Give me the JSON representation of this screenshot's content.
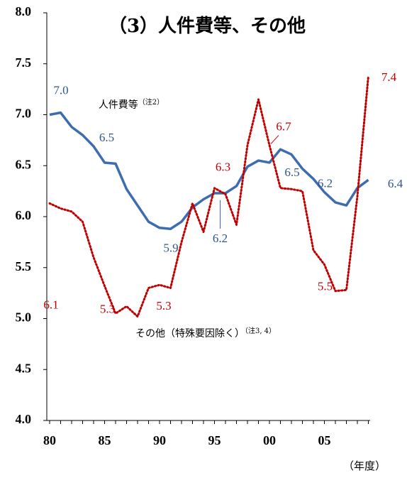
{
  "chart_data": {
    "type": "line",
    "title": "（3）人件費等、その他",
    "x_unit": "（年度）",
    "categories": [
      "80",
      null,
      null,
      null,
      null,
      "85",
      null,
      null,
      null,
      null,
      "90",
      null,
      null,
      null,
      null,
      "95",
      null,
      null,
      null,
      null,
      "00",
      null,
      null,
      null,
      null,
      "05",
      null,
      null,
      null,
      null
    ],
    "ylim": [
      4,
      8
    ],
    "yticks": [
      {
        "value": 4,
        "label": "4.0"
      },
      {
        "value": 4.5,
        "label": "4.5"
      },
      {
        "value": 5,
        "label": "5.0"
      },
      {
        "value": 5.5,
        "label": "5.5"
      },
      {
        "value": 6,
        "label": "6.0"
      },
      {
        "value": 6.5,
        "label": "6.5"
      },
      {
        "value": 7,
        "label": "7.0"
      },
      {
        "value": 7.5,
        "label": "7.5"
      },
      {
        "value": 8,
        "label": "8.0"
      }
    ],
    "series": [
      {
        "name": "人件費等",
        "note": "（注2）",
        "color": "#3d6db0",
        "label_color": "#2f5687",
        "style": "solid",
        "values": [
          7.0,
          7.02,
          6.88,
          6.8,
          6.69,
          6.53,
          6.52,
          6.27,
          6.11,
          5.95,
          5.89,
          5.88,
          5.95,
          6.09,
          6.17,
          6.23,
          6.23,
          6.3,
          6.49,
          6.55,
          6.53,
          6.66,
          6.61,
          6.47,
          6.37,
          6.24,
          6.14,
          6.11,
          6.28,
          6.36
        ],
        "value_labels": [
          "7.0",
          null,
          null,
          null,
          null,
          "6.5",
          null,
          null,
          null,
          null,
          "5.9",
          null,
          null,
          null,
          null,
          "6.2",
          null,
          null,
          null,
          null,
          "6.5",
          null,
          null,
          null,
          null,
          "6.2",
          null,
          null,
          null,
          "6.4"
        ]
      },
      {
        "name": "その他（特殊要因除く）",
        "note": "（注3, 4）",
        "color": "#c00000",
        "label_color": "#c00000",
        "style": "dotted",
        "values": [
          6.13,
          6.08,
          6.05,
          5.95,
          5.6,
          5.32,
          5.05,
          5.12,
          5.02,
          5.3,
          5.33,
          5.3,
          5.75,
          6.13,
          5.85,
          6.28,
          6.22,
          5.92,
          6.7,
          7.15,
          6.7,
          6.28,
          6.27,
          6.25,
          5.67,
          5.53,
          5.27,
          5.28,
          6.2,
          7.38
        ],
        "value_labels": [
          "6.1",
          null,
          null,
          null,
          null,
          "5.3",
          null,
          null,
          null,
          null,
          "5.3",
          null,
          null,
          null,
          null,
          "6.3",
          null,
          null,
          null,
          null,
          "6.7",
          null,
          null,
          null,
          null,
          "5.5",
          null,
          null,
          null,
          "7.4"
        ]
      }
    ]
  }
}
